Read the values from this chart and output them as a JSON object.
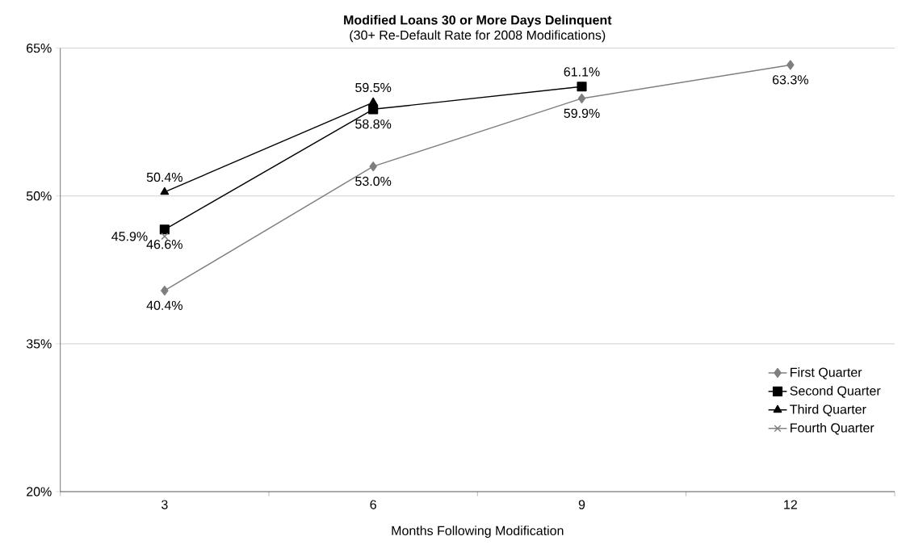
{
  "chart_data": {
    "type": "line",
    "title": "Modified Loans 30 or More Days Delinquent",
    "subtitle": "(30+ Re-Default Rate for 2008 Modifications)",
    "xlabel": "Months Following Modification",
    "categories": [
      "3",
      "6",
      "9",
      "12"
    ],
    "series": [
      {
        "name": "First Quarter",
        "color": "#7f7f7f",
        "marker": "diamond",
        "values": [
          40.4,
          53.0,
          59.9,
          63.3
        ],
        "value_labels": [
          "40.4%",
          "53.0%",
          "59.9%",
          "63.3%"
        ]
      },
      {
        "name": "Second Quarter",
        "color": "#000000",
        "marker": "square",
        "values": [
          46.6,
          58.8,
          61.1,
          null
        ],
        "value_labels": [
          "46.6%",
          "58.8%",
          "61.1%",
          null
        ]
      },
      {
        "name": "Third Quarter",
        "color": "#000000",
        "marker": "triangle",
        "values": [
          50.4,
          59.5,
          null,
          null
        ],
        "value_labels": [
          "50.4%",
          "59.5%",
          null,
          null
        ]
      },
      {
        "name": "Fourth Quarter",
        "color": "#7f7f7f",
        "marker": "cross",
        "values": [
          45.9,
          null,
          null,
          null
        ],
        "value_labels": [
          "45.9%",
          null,
          null,
          null
        ]
      }
    ],
    "ylim": [
      20,
      65
    ],
    "yticks": [
      {
        "value": 20,
        "label": "20%"
      },
      {
        "value": 35,
        "label": "35%"
      },
      {
        "value": 50,
        "label": "50%"
      },
      {
        "value": 65,
        "label": "65%"
      }
    ],
    "grid": "y",
    "legend": "bottom right",
    "line_style": "solid"
  }
}
